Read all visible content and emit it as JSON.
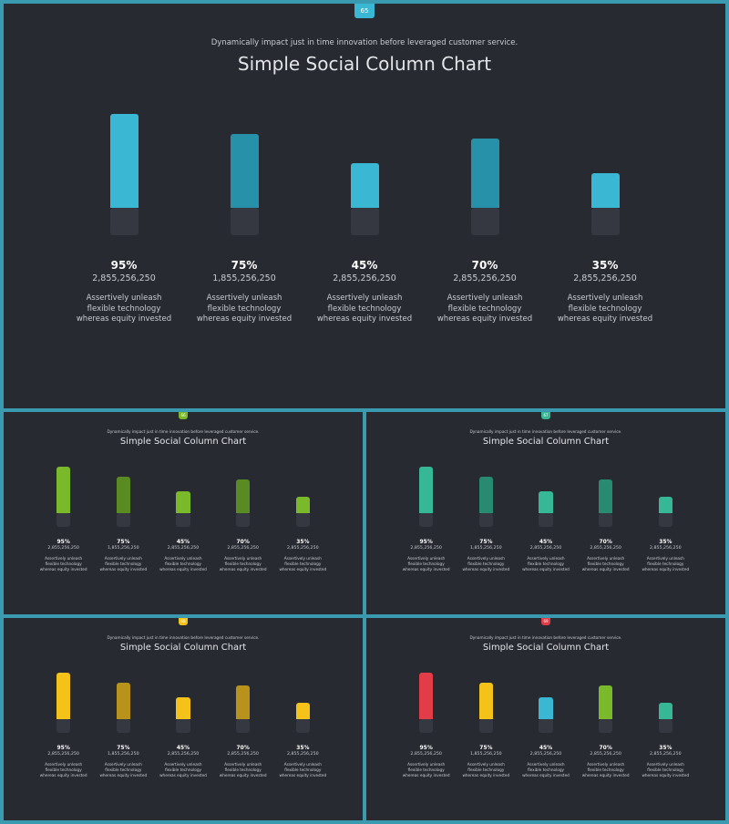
{
  "slides": [
    {
      "id": "slide-main",
      "badge": "65",
      "badge_color": "#3ab8d3"
    },
    {
      "id": "slide-green",
      "badge": "66",
      "badge_color": "#7ab929"
    },
    {
      "id": "slide-teal",
      "badge": "67",
      "badge_color": "#36b896"
    },
    {
      "id": "slide-yellow",
      "badge": "68",
      "badge_color": "#f5c219"
    },
    {
      "id": "slide-multi",
      "badge": "69",
      "badge_color": "#e13c48"
    }
  ],
  "chart_data": [
    {
      "type": "bar",
      "title": "Simple Social Column Chart",
      "subtitle": "Dynamically impact just in time innovation  before leveraged customer service.",
      "categories": [
        "95%",
        "75%",
        "45%",
        "70%",
        "35%"
      ],
      "values": [
        95,
        75,
        45,
        70,
        35
      ],
      "numbers": [
        "2,855,256,250",
        "1,855,256,250",
        "2,855,256,250",
        "2,855,256,250",
        "2,855,256,250"
      ],
      "descriptions": [
        "Assertively unleash flexible technology whereas equity invested",
        "Assertively unleash flexible technology whereas equity invested",
        "Assertively unleash flexible technology whereas equity invested",
        "Assertively unleash flexible technology whereas equity invested",
        "Assertively unleash flexible technology whereas equity invested"
      ],
      "colors": [
        "#3ab8d3",
        "#2691a8",
        "#3ab8d3",
        "#2691a8",
        "#3ab8d3"
      ]
    },
    {
      "type": "bar",
      "title": "Simple Social Column Chart",
      "subtitle": "Dynamically impact just in time innovation  before leveraged customer service.",
      "categories": [
        "95%",
        "75%",
        "45%",
        "70%",
        "35%"
      ],
      "values": [
        95,
        75,
        45,
        70,
        35
      ],
      "numbers": [
        "2,855,256,250",
        "1,855,256,250",
        "2,855,256,250",
        "2,855,256,250",
        "2,855,256,250"
      ],
      "descriptions": [
        "Assertively unleash flexible technology whereas equity invested",
        "Assertively unleash flexible technology whereas equity invested",
        "Assertively unleash flexible technology whereas equity invested",
        "Assertively unleash flexible technology whereas equity invested",
        "Assertively unleash flexible technology whereas equity invested"
      ],
      "colors": [
        "#7ab929",
        "#5a8a22",
        "#7ab929",
        "#5a8a22",
        "#7ab929"
      ]
    },
    {
      "type": "bar",
      "title": "Simple Social Column Chart",
      "subtitle": "Dynamically impact just in time innovation  before leveraged customer service.",
      "categories": [
        "95%",
        "75%",
        "45%",
        "70%",
        "35%"
      ],
      "values": [
        95,
        75,
        45,
        70,
        35
      ],
      "numbers": [
        "2,855,256,250",
        "1,855,256,250",
        "2,855,256,250",
        "2,855,256,250",
        "2,855,256,250"
      ],
      "descriptions": [
        "Assertively unleash flexible technology whereas equity invested",
        "Assertively unleash flexible technology whereas equity invested",
        "Assertively unleash flexible technology whereas equity invested",
        "Assertively unleash flexible technology whereas equity invested",
        "Assertively unleash flexible technology whereas equity invested"
      ],
      "colors": [
        "#36b896",
        "#288a70",
        "#36b896",
        "#288a70",
        "#36b896"
      ]
    },
    {
      "type": "bar",
      "title": "Simple Social Column Chart",
      "subtitle": "Dynamically impact just in time innovation  before leveraged customer service.",
      "categories": [
        "95%",
        "75%",
        "45%",
        "70%",
        "35%"
      ],
      "values": [
        95,
        75,
        45,
        70,
        35
      ],
      "numbers": [
        "2,855,256,250",
        "1,855,256,250",
        "2,855,256,250",
        "2,855,256,250",
        "2,855,256,250"
      ],
      "descriptions": [
        "Assertively unleash flexible technology whereas equity invested",
        "Assertively unleash flexible technology whereas equity invested",
        "Assertively unleash flexible technology whereas equity invested",
        "Assertively unleash flexible technology whereas equity invested",
        "Assertively unleash flexible technology whereas equity invested"
      ],
      "colors": [
        "#f5c219",
        "#b8921a",
        "#f5c219",
        "#b8921a",
        "#f5c219"
      ]
    },
    {
      "type": "bar",
      "title": "Simple Social Column Chart",
      "subtitle": "Dynamically impact just in time innovation  before leveraged customer service.",
      "categories": [
        "95%",
        "75%",
        "45%",
        "70%",
        "35%"
      ],
      "values": [
        95,
        75,
        45,
        70,
        35
      ],
      "numbers": [
        "2,855,256,250",
        "1,855,256,250",
        "2,855,256,250",
        "2,855,256,250",
        "2,855,256,250"
      ],
      "descriptions": [
        "Assertively unleash flexible technology whereas equity invested",
        "Assertively unleash flexible technology whereas equity invested",
        "Assertively unleash flexible technology whereas equity invested",
        "Assertively unleash flexible technology whereas equity invested",
        "Assertively unleash flexible technology whereas equity invested"
      ],
      "colors": [
        "#e13c48",
        "#f5c219",
        "#3ab8d3",
        "#7ab929",
        "#36b896"
      ]
    }
  ]
}
